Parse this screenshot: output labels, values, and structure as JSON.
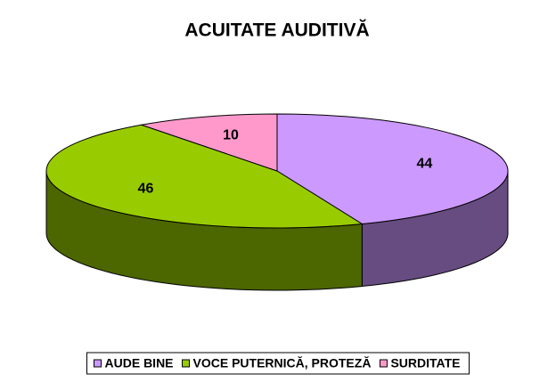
{
  "chart_data": {
    "type": "pie",
    "title": "ACUITATE AUDITIVĂ",
    "categories": [
      "AUDE BINE",
      "VOCE PUTERNICĂ, PROTEZĂ",
      "SURDITATE"
    ],
    "values": [
      44,
      46,
      10
    ],
    "colors": [
      "#cc99ff",
      "#99cc00",
      "#ff99cc"
    ],
    "side_colors": [
      "#664c80",
      "#4c6600",
      "#804c66"
    ]
  }
}
